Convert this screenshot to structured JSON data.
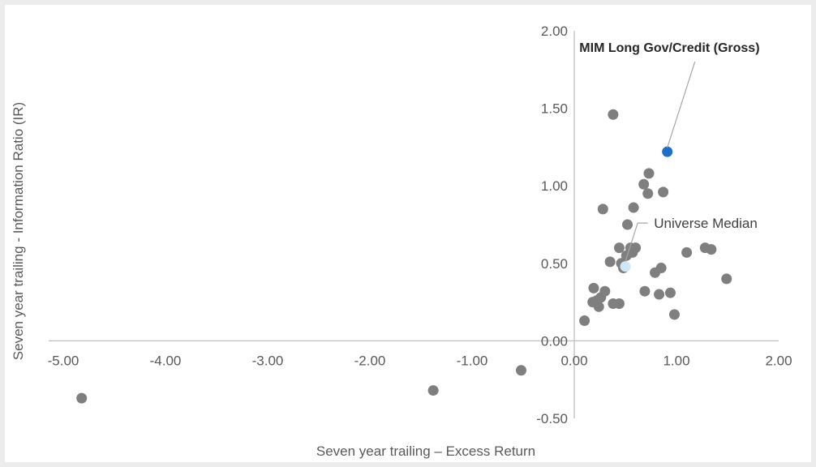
{
  "chart_data": {
    "type": "scatter",
    "xlabel": "Seven year trailing – Excess Return",
    "ylabel": "Seven year trailing - Information Ratio (IR)",
    "xlim": [
      -5.0,
      2.0
    ],
    "ylim": [
      -0.5,
      2.0
    ],
    "x_ticks": [
      "-5.00",
      "-4.00",
      "-3.00",
      "-2.00",
      "-1.00",
      "0.00",
      "1.00",
      "2.00"
    ],
    "y_ticks": [
      "2.00",
      "1.50",
      "1.00",
      "0.50",
      "0.00",
      "-0.50"
    ],
    "x_tick_values": [
      -5,
      -4,
      -3,
      -2,
      -1,
      0,
      1,
      2
    ],
    "y_tick_values": [
      2.0,
      1.5,
      1.0,
      0.5,
      0.0,
      -0.5
    ],
    "grid": false,
    "legend": "none",
    "colors": {
      "universe": "#7f7f7f",
      "highlight": "#1f6fc5",
      "median": "#cfe6f7",
      "axis": "#bfbfbf",
      "leader": "#a6a6a6"
    },
    "points": [
      [
        -4.82,
        -0.37
      ],
      [
        -1.38,
        -0.32
      ],
      [
        -0.52,
        -0.19
      ],
      [
        0.1,
        0.13
      ],
      [
        0.18,
        0.25
      ],
      [
        0.22,
        0.26
      ],
      [
        0.19,
        0.34
      ],
      [
        0.24,
        0.22
      ],
      [
        0.26,
        0.28
      ],
      [
        0.28,
        0.85
      ],
      [
        0.3,
        0.32
      ],
      [
        0.35,
        0.51
      ],
      [
        0.38,
        1.46
      ],
      [
        0.38,
        0.24
      ],
      [
        0.44,
        0.24
      ],
      [
        0.44,
        0.6
      ],
      [
        0.46,
        0.5
      ],
      [
        0.48,
        0.47
      ],
      [
        0.51,
        0.55
      ],
      [
        0.52,
        0.75
      ],
      [
        0.55,
        0.6
      ],
      [
        0.57,
        0.57
      ],
      [
        0.58,
        0.86
      ],
      [
        0.6,
        0.6
      ],
      [
        0.68,
        1.01
      ],
      [
        0.69,
        0.32
      ],
      [
        0.72,
        0.95
      ],
      [
        0.73,
        1.08
      ],
      [
        0.79,
        0.44
      ],
      [
        0.83,
        0.3
      ],
      [
        0.85,
        0.47
      ],
      [
        0.87,
        0.96
      ],
      [
        0.94,
        0.31
      ],
      [
        0.98,
        0.17
      ],
      [
        1.1,
        0.57
      ],
      [
        1.28,
        0.6
      ],
      [
        1.34,
        0.59
      ],
      [
        1.49,
        0.4
      ]
    ],
    "highlight": {
      "label": "MIM Long Gov/Credit (Gross)",
      "x": 0.91,
      "y": 1.22
    },
    "median": {
      "label": "Universe Median",
      "x": 0.5,
      "y": 0.48
    }
  }
}
